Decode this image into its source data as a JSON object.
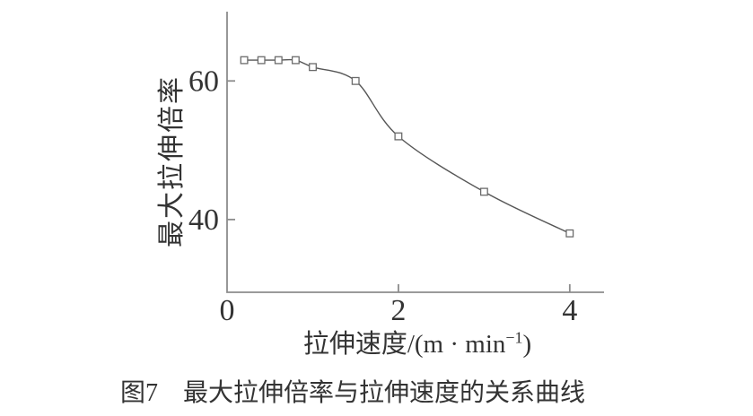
{
  "labels": {
    "y_axis_title": "最大拉伸倍率",
    "x_axis_title_prefix": "拉伸速度/(m · min",
    "x_axis_title_sup": "−1",
    "x_axis_title_suffix": ")",
    "caption": "图7　最大拉伸倍率与拉伸速度的关系曲线"
  },
  "colors": {
    "background": "#ffffff",
    "curve": "#565656",
    "axis": "#8c8c8c",
    "tick": "#8c8c8c",
    "marker_stroke": "#6b6b6b",
    "marker_fill": "#ffffff",
    "text": "#333333"
  },
  "chart_data": {
    "type": "line",
    "title": "图7　最大拉伸倍率与拉伸速度的关系曲线",
    "xlabel": "拉伸速度/(m·min⁻¹)",
    "ylabel": "最大拉伸倍率",
    "x": [
      0.2,
      0.4,
      0.6,
      0.8,
      1.0,
      1.5,
      2.0,
      3.0,
      4.0
    ],
    "series": [
      {
        "name": "最大拉伸倍率",
        "values": [
          63,
          63,
          63,
          63,
          62,
          60,
          52,
          44,
          38
        ]
      }
    ],
    "marker": "open-square",
    "smooth": true,
    "grid": false,
    "legend": "none",
    "xlim": [
      0,
      4.4
    ],
    "ylim": [
      29.5,
      70
    ],
    "xticks": [
      {
        "value": 0,
        "label": "0",
        "tick": false
      },
      {
        "value": 2,
        "label": "2",
        "tick": true
      },
      {
        "value": 4,
        "label": "4",
        "tick": true
      }
    ],
    "yticks": [
      {
        "value": 40,
        "label": "40",
        "tick": true
      },
      {
        "value": 60,
        "label": "60",
        "tick": true
      }
    ]
  }
}
